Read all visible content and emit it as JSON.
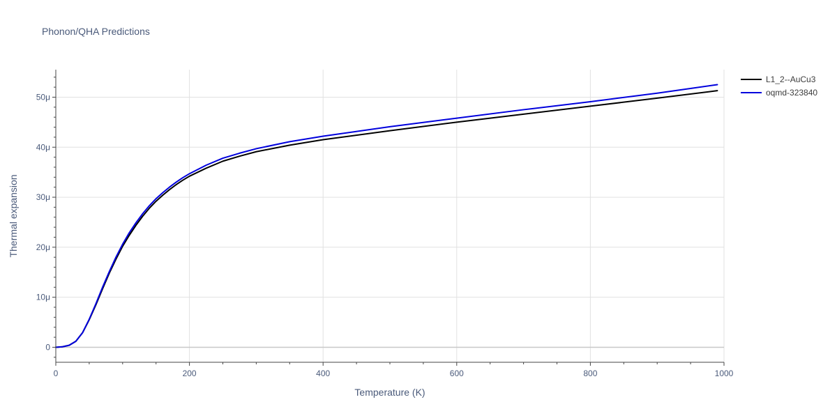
{
  "chart_data": {
    "type": "line",
    "title": "Phonon/QHA Predictions",
    "xlabel": "Temperature (K)",
    "ylabel": "Thermal expansion",
    "xlim": [
      0,
      1000
    ],
    "ylim": [
      -3,
      55.5
    ],
    "x_ticks": [
      0,
      200,
      400,
      600,
      800,
      1000
    ],
    "x_tick_labels": [
      "0",
      "200",
      "400",
      "600",
      "800",
      "1000"
    ],
    "y_ticks": [
      0,
      10,
      20,
      30,
      40,
      50
    ],
    "y_tick_labels": [
      "0",
      "10μ",
      "20μ",
      "30μ",
      "40μ",
      "50μ"
    ],
    "grid": true,
    "legend": "top-right",
    "series": [
      {
        "name": "L1_2--AuCu3",
        "color": "#000000",
        "x": [
          0,
          10,
          20,
          30,
          40,
          50,
          60,
          70,
          80,
          90,
          100,
          110,
          120,
          130,
          140,
          150,
          160,
          170,
          180,
          190,
          200,
          225,
          250,
          275,
          300,
          350,
          400,
          500,
          600,
          700,
          800,
          900,
          990
        ],
        "y": [
          0,
          0.1,
          0.4,
          1.2,
          2.9,
          5.5,
          8.5,
          11.7,
          14.8,
          17.6,
          20.2,
          22.4,
          24.4,
          26.2,
          27.8,
          29.2,
          30.4,
          31.5,
          32.5,
          33.4,
          34.2,
          35.8,
          37.2,
          38.2,
          39.1,
          40.4,
          41.5,
          43.3,
          45.0,
          46.6,
          48.2,
          49.8,
          51.3
        ]
      },
      {
        "name": "oqmd-323840",
        "color": "#0000dd",
        "x": [
          0,
          10,
          20,
          30,
          40,
          50,
          60,
          70,
          80,
          90,
          100,
          110,
          120,
          130,
          140,
          150,
          160,
          170,
          180,
          190,
          200,
          225,
          250,
          275,
          300,
          350,
          400,
          500,
          600,
          700,
          800,
          900,
          990
        ],
        "y": [
          0,
          0.1,
          0.4,
          1.2,
          2.9,
          5.6,
          8.7,
          12.0,
          15.1,
          18.0,
          20.6,
          22.9,
          24.9,
          26.7,
          28.3,
          29.7,
          30.9,
          32.0,
          33.0,
          33.9,
          34.7,
          36.4,
          37.8,
          38.8,
          39.7,
          41.1,
          42.2,
          44.1,
          45.8,
          47.5,
          49.1,
          50.8,
          52.5
        ]
      }
    ]
  }
}
